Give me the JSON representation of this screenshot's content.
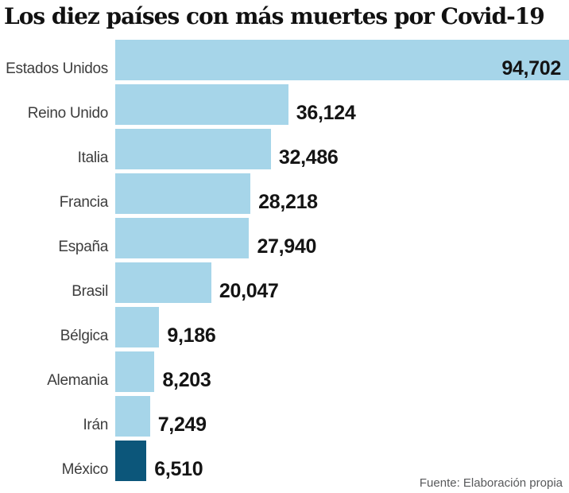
{
  "title": "Los diez países con más muertes por Covid-19",
  "source": "Fuente: Elaboración propia",
  "colors": {
    "bar": "#a6d5e9",
    "bar_highlight": "#0c567a",
    "title_text": "#111111",
    "label_text": "#3d3d3d",
    "value_text": "#141414",
    "source_text": "#58595b",
    "background": "#ffffff"
  },
  "chart_data": {
    "type": "bar",
    "orientation": "horizontal",
    "title": "Los diez países con más muertes por Covid-19",
    "categories": [
      "Estados Unidos",
      "Reino Unido",
      "Italia",
      "Francia",
      "España",
      "Brasil",
      "Bélgica",
      "Alemania",
      "Irán",
      "México"
    ],
    "values": [
      94702,
      36124,
      32486,
      28218,
      27940,
      20047,
      9186,
      8203,
      7249,
      6510
    ],
    "value_labels": [
      "94,702",
      "36,124",
      "32,486",
      "28,218",
      "27,940",
      "20,047",
      "9,186",
      "8,203",
      "7,249",
      "6,510"
    ],
    "xlim": [
      0,
      94702
    ],
    "highlighted_category": "México",
    "value_label_inside": [
      "Estados Unidos"
    ],
    "legend": false,
    "grid": false,
    "source": "Fuente: Elaboración propia"
  }
}
